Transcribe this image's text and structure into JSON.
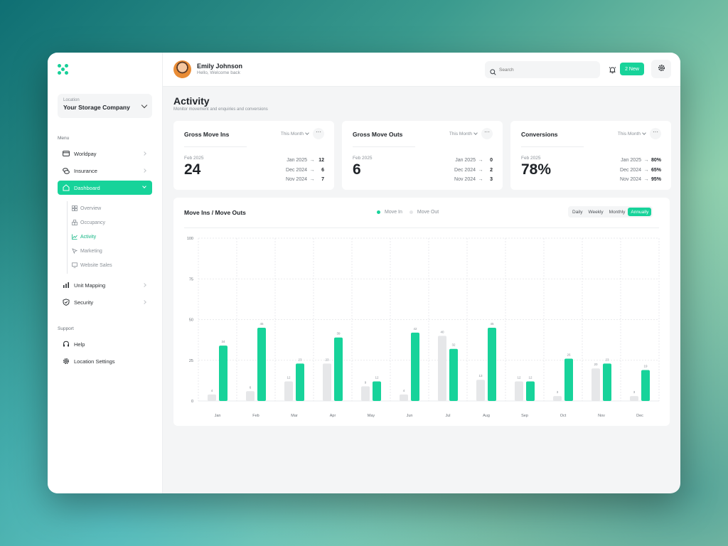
{
  "sidebar": {
    "location": {
      "label": "Location",
      "value": "Your Storage Company"
    },
    "menu_title": "Menu",
    "items": [
      {
        "label": "Worldpay",
        "icon": "card-icon"
      },
      {
        "label": "Insurance",
        "icon": "coins-icon"
      },
      {
        "label": "Dashboard",
        "icon": "home-icon",
        "active": true
      },
      {
        "label": "Unit Mapping",
        "icon": "bar-chart-icon"
      },
      {
        "label": "Security",
        "icon": "shield-icon"
      }
    ],
    "subitems": [
      {
        "label": "Overview",
        "icon": "grid-icon"
      },
      {
        "label": "Occupancy",
        "icon": "boxes-icon"
      },
      {
        "label": "Activity",
        "icon": "line-chart-icon",
        "active": true
      },
      {
        "label": "Marketing",
        "icon": "cursor-icon"
      },
      {
        "label": "Website Sales",
        "icon": "monitor-icon"
      }
    ],
    "support_title": "Support",
    "support_items": [
      {
        "label": "Help",
        "icon": "headset-icon"
      },
      {
        "label": "Location Settings",
        "icon": "gear-icon"
      }
    ]
  },
  "header": {
    "user_name": "Emily Johnson",
    "welcome": "Hello, Welcome back",
    "search_placeholder": "Search",
    "new_badge": "2 New"
  },
  "page": {
    "title": "Activity",
    "subtitle": "Monitor movement and enquiries and conversions"
  },
  "cards": [
    {
      "title": "Gross Move Ins",
      "period": "This Month",
      "current_month": "Feb 2025",
      "current_value": "24",
      "history": [
        {
          "month": "Jan 2025",
          "value": "12"
        },
        {
          "month": "Dec 2024",
          "value": "6"
        },
        {
          "month": "Nov 2024",
          "value": "7"
        }
      ]
    },
    {
      "title": "Gross Move Outs",
      "period": "This Month",
      "current_month": "Feb 2025",
      "current_value": "6",
      "history": [
        {
          "month": "Jan 2025",
          "value": "0"
        },
        {
          "month": "Dec 2024",
          "value": "2"
        },
        {
          "month": "Nov 2024",
          "value": "3"
        }
      ]
    },
    {
      "title": "Conversions",
      "period": "This Month",
      "current_month": "Feb 2025",
      "current_value": "78%",
      "history": [
        {
          "month": "Jan 2025",
          "value": "80%"
        },
        {
          "month": "Dec 2024",
          "value": "65%"
        },
        {
          "month": "Nov 2024",
          "value": "95%"
        }
      ]
    }
  ],
  "chart_ui": {
    "title": "Move Ins / Move Outs",
    "ranges": [
      "Daily",
      "Weekly",
      "Monthly",
      "Annually"
    ],
    "active_range": "Annually",
    "arrow": "→",
    "more": "···"
  },
  "colors": {
    "accent": "#17d39a",
    "move_out": "#e6e7e9"
  },
  "chart_data": {
    "type": "bar",
    "categories": [
      "Jan",
      "Feb",
      "Mar",
      "Apr",
      "May",
      "Jun",
      "Jul",
      "Aug",
      "Sep",
      "Oct",
      "Nov",
      "Dec"
    ],
    "series": [
      {
        "name": "Move In",
        "values": [
          34,
          45,
          23,
          39,
          12,
          42,
          32,
          45,
          12,
          26,
          23,
          19
        ]
      },
      {
        "name": "Move Out",
        "values": [
          4,
          6,
          12,
          23,
          9,
          4,
          40,
          13,
          12,
          3,
          20,
          3
        ]
      }
    ],
    "ylim": [
      0,
      100
    ],
    "yticks": [
      0,
      25,
      50,
      75,
      100
    ],
    "grid": true,
    "legend": "top-center"
  }
}
